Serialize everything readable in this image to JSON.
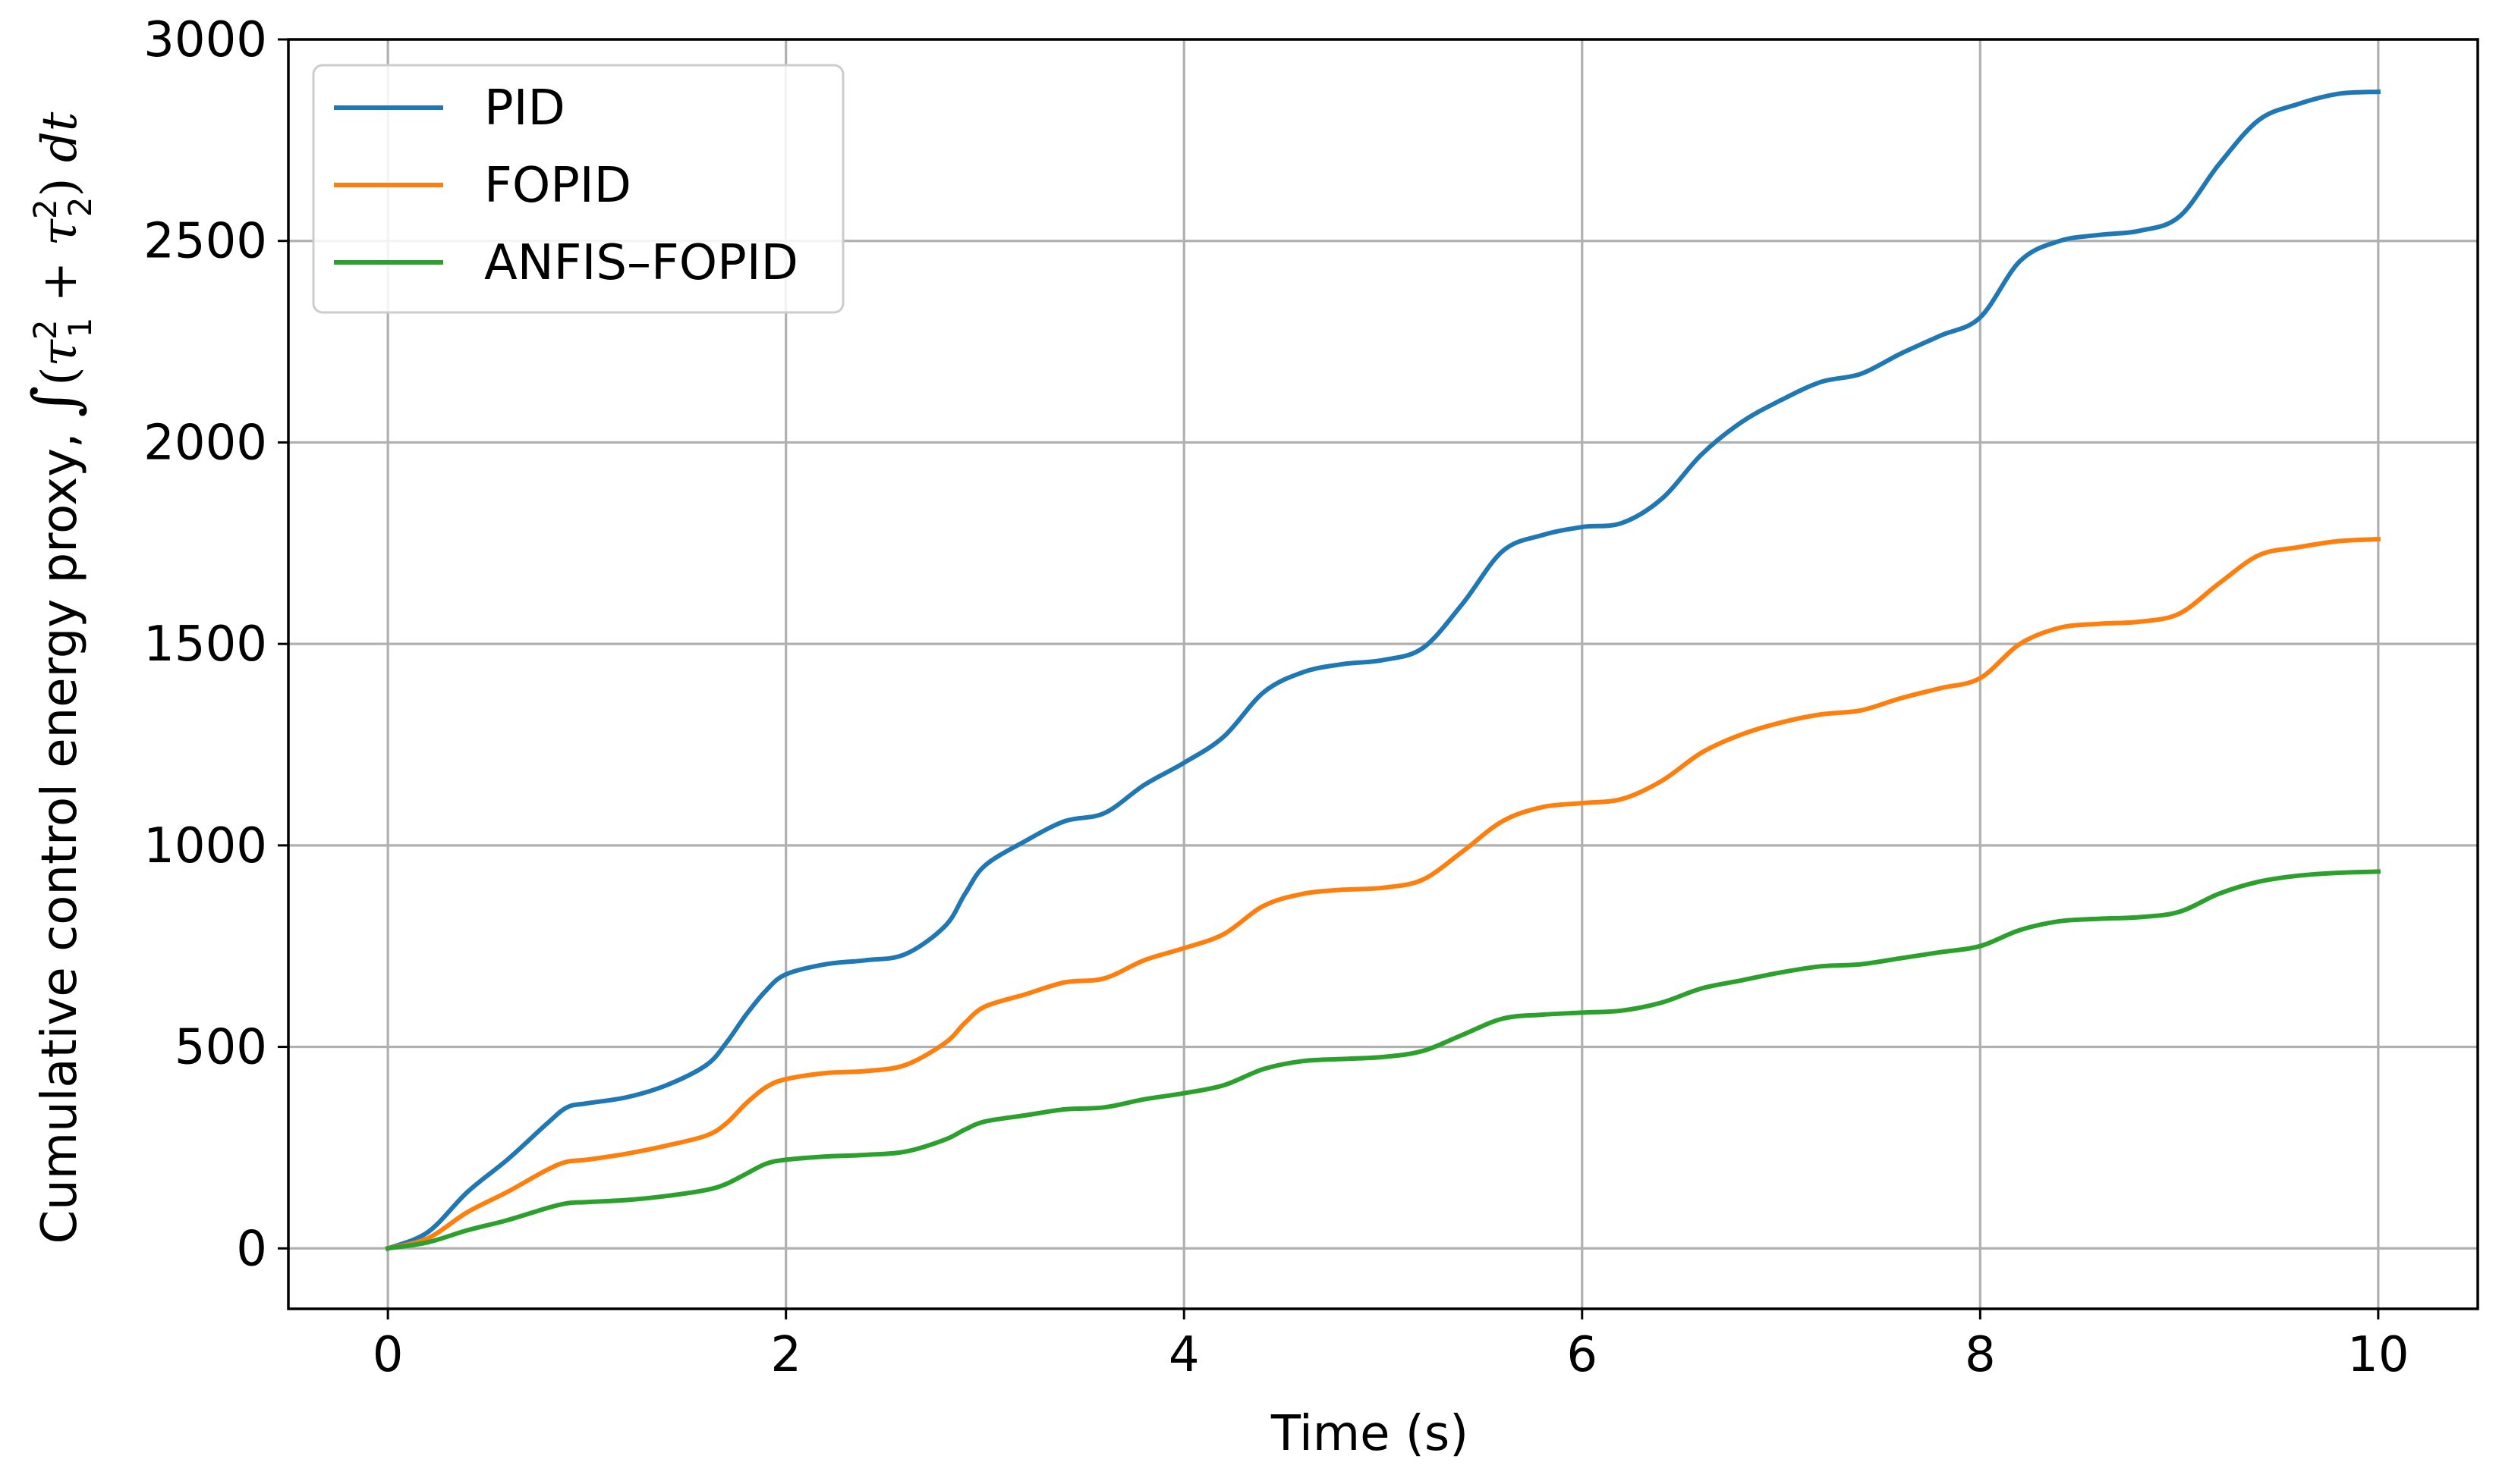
{
  "chart_data": {
    "type": "line",
    "title": "",
    "xlabel": "Time (s)",
    "ylabel_prefix": "Cumulative control energy proxy, ",
    "ylabel_formula": {
      "integral": "∫",
      "open": "(",
      "tau": "τ",
      "sub1": "1",
      "sup2": "2",
      "plus": " + ",
      "sub2": "2",
      "close": ") ",
      "dt": "dt"
    },
    "xlim": [
      -0.5,
      10.5
    ],
    "ylim": [
      -150,
      3000
    ],
    "xticks": [
      0,
      2,
      4,
      6,
      8,
      10
    ],
    "xtick_labels": [
      "0",
      "2",
      "4",
      "6",
      "8",
      "10"
    ],
    "yticks": [
      0,
      500,
      1000,
      1500,
      2000,
      2500,
      3000
    ],
    "ytick_labels": [
      "0",
      "500",
      "1000",
      "1500",
      "2000",
      "2500",
      "3000"
    ],
    "grid": true,
    "legend_position": "top-left",
    "x": [
      0,
      0.2,
      0.4,
      0.6,
      0.8,
      0.9,
      1.0,
      1.2,
      1.4,
      1.6,
      1.7,
      1.8,
      1.9,
      2.0,
      2.2,
      2.4,
      2.6,
      2.8,
      2.9,
      3.0,
      3.2,
      3.4,
      3.6,
      3.8,
      4.0,
      4.2,
      4.4,
      4.6,
      4.8,
      5.0,
      5.2,
      5.4,
      5.6,
      5.8,
      6.0,
      6.2,
      6.4,
      6.6,
      6.8,
      7.0,
      7.2,
      7.4,
      7.6,
      7.8,
      8.0,
      8.2,
      8.4,
      8.6,
      8.8,
      9.0,
      9.2,
      9.4,
      9.6,
      9.8,
      10.0
    ],
    "series": [
      {
        "name": "PID",
        "color": "#1f77b4",
        "values": [
          0,
          40,
          140,
          220,
          310,
          350,
          360,
          375,
          405,
          455,
          510,
          580,
          640,
          680,
          705,
          715,
          730,
          800,
          880,
          950,
          1010,
          1060,
          1080,
          1150,
          1205,
          1270,
          1380,
          1430,
          1450,
          1460,
          1490,
          1600,
          1730,
          1770,
          1790,
          1800,
          1860,
          1970,
          2050,
          2105,
          2150,
          2170,
          2220,
          2265,
          2310,
          2450,
          2500,
          2515,
          2525,
          2560,
          2690,
          2800,
          2840,
          2865,
          2870
        ]
      },
      {
        "name": "FOPID",
        "color": "#ff7f0e",
        "values": [
          0,
          25,
          90,
          140,
          195,
          215,
          220,
          235,
          255,
          280,
          310,
          360,
          400,
          420,
          435,
          440,
          455,
          510,
          560,
          600,
          630,
          660,
          670,
          715,
          745,
          780,
          850,
          880,
          890,
          895,
          915,
          985,
          1060,
          1095,
          1105,
          1115,
          1160,
          1230,
          1275,
          1305,
          1325,
          1335,
          1365,
          1390,
          1415,
          1500,
          1540,
          1550,
          1555,
          1575,
          1650,
          1720,
          1740,
          1755,
          1760
        ]
      },
      {
        "name": "ANFIS–FOPID",
        "color": "#2ca02c",
        "values": [
          0,
          15,
          45,
          70,
          100,
          112,
          115,
          120,
          130,
          145,
          160,
          185,
          210,
          220,
          228,
          232,
          240,
          270,
          295,
          315,
          330,
          345,
          350,
          370,
          385,
          405,
          445,
          465,
          470,
          475,
          490,
          530,
          570,
          580,
          585,
          590,
          610,
          645,
          665,
          685,
          700,
          705,
          720,
          735,
          750,
          790,
          812,
          818,
          822,
          835,
          880,
          910,
          925,
          932,
          935
        ]
      }
    ]
  }
}
